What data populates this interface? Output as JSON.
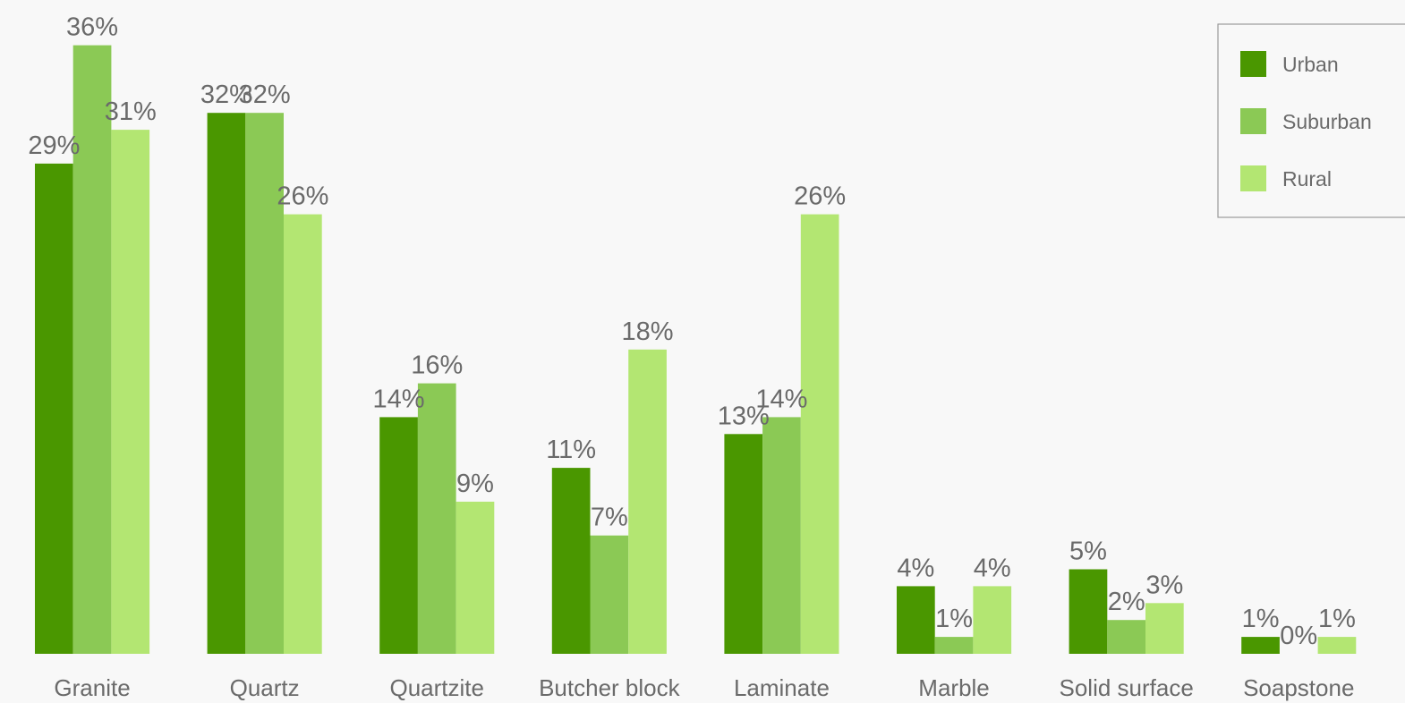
{
  "chart_data": {
    "type": "bar",
    "title": "",
    "xlabel": "",
    "ylabel": "",
    "ylim": [
      0,
      36
    ],
    "grid": false,
    "legend_position": "top-right",
    "categories": [
      "Granite",
      "Quartz",
      "Quartzite",
      "Butcher block",
      "Laminate",
      "Marble",
      "Solid surface",
      "Soapstone"
    ],
    "series": [
      {
        "name": "Urban",
        "color": "#4a9700",
        "values": [
          29,
          32,
          14,
          11,
          13,
          4,
          5,
          1
        ],
        "labels": [
          "29%",
          "32%",
          "14%",
          "11%",
          "13%",
          "4%",
          "5%",
          "1%"
        ]
      },
      {
        "name": "Suburban",
        "color": "#8bc955",
        "values": [
          36,
          32,
          16,
          7,
          14,
          1,
          2,
          0
        ],
        "labels": [
          "36%",
          "32%",
          "16%",
          "7%",
          "14%",
          "1%",
          "2%",
          "0%"
        ]
      },
      {
        "name": "Rural",
        "color": "#b3e672",
        "values": [
          31,
          26,
          9,
          18,
          26,
          4,
          3,
          1
        ],
        "labels": [
          "31%",
          "26%",
          "9%",
          "18%",
          "26%",
          "4%",
          "3%",
          "1%"
        ]
      }
    ]
  }
}
